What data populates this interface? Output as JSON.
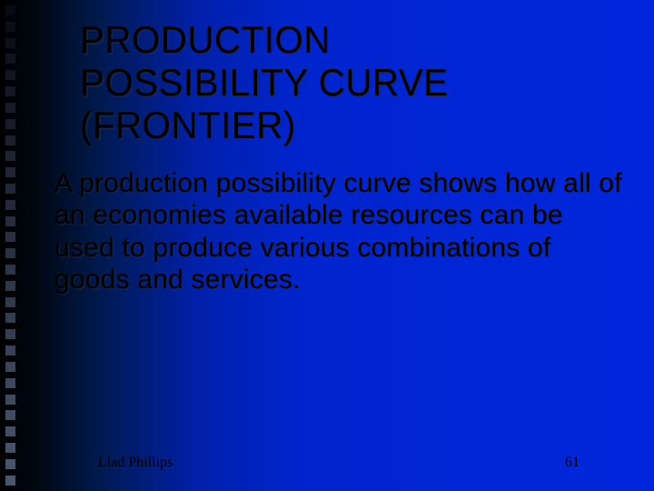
{
  "slide": {
    "title_line1": "PRODUCTION",
    "title_line2": "POSSIBILITY CURVE",
    "title_line3": "(FRONTIER)",
    "body": "A production possibility curve shows how all of an economies available resources can be used to produce various combinations of goods and services.",
    "author": "Llad Phillips",
    "page_number": "61"
  },
  "style": {
    "background_gradient": [
      "#000000",
      "#001a4d",
      "#0024cc",
      "#0026dd"
    ],
    "title_fontsize": 42,
    "body_fontsize": 30,
    "footer_fontsize": 16,
    "text_color": "#000000",
    "shadow_color": "rgba(40,40,60,0.6)",
    "square_count": 30,
    "square_size": 11,
    "square_color_top": "#0a0a14",
    "square_color_bottom": "#4a5670"
  }
}
